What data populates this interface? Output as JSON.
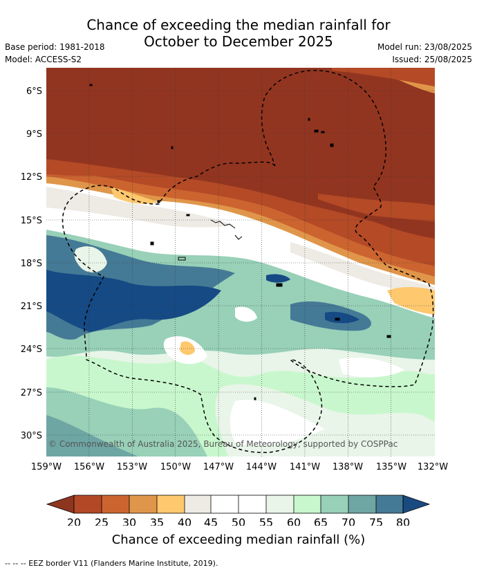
{
  "title": {
    "line1": "Chance of exceeding the median rainfall for",
    "line2": "October to December 2025"
  },
  "meta_left": {
    "base_period": "Base period: 1981-2018",
    "model": "Model: ACCESS-S2"
  },
  "meta_right": {
    "model_run": "Model run: 23/08/2025",
    "issued": "Issued: 25/08/2025"
  },
  "copyright": "© Commonwealth of Australia 2025, Bureau of Meteorology, supported by COSPPac",
  "lat_labels": [
    "6°S",
    "9°S",
    "12°S",
    "15°S",
    "18°S",
    "21°S",
    "24°S",
    "27°S",
    "30°S"
  ],
  "lon_labels": [
    "159°W",
    "156°W",
    "153°W",
    "150°W",
    "147°W",
    "144°W",
    "141°W",
    "138°W",
    "135°W",
    "132°W"
  ],
  "colorbar": {
    "ticks": [
      "20",
      "25",
      "30",
      "35",
      "40",
      "45",
      "50",
      "55",
      "60",
      "65",
      "70",
      "75",
      "80"
    ],
    "colors": [
      "#8e3520",
      "#b34826",
      "#cc6430",
      "#e0964a",
      "#fdc86e",
      "#eeeae4",
      "#ffffff",
      "#ffffff",
      "#e8f5e8",
      "#c9f7cd",
      "#98d0b8",
      "#6ea6a4",
      "#457a96",
      "#1a4b80"
    ],
    "label": "Chance of exceeding median rainfall (%)"
  },
  "footnote": "--  --  -- EEZ border V11 (Flanders Marine Institute, 2019).",
  "map_colors": {
    "c20": "#923520",
    "c25": "#b44a26",
    "c30": "#cc6430",
    "c35": "#e0964a",
    "c40": "#fdc86e",
    "c45": "#eeeae4",
    "c55": "#ffffff",
    "c60": "#e8f5e8",
    "c65": "#c9f7cd",
    "c70": "#98d0b8",
    "c75": "#6ea6a4",
    "c80": "#457a96",
    "c85": "#154a85"
  }
}
